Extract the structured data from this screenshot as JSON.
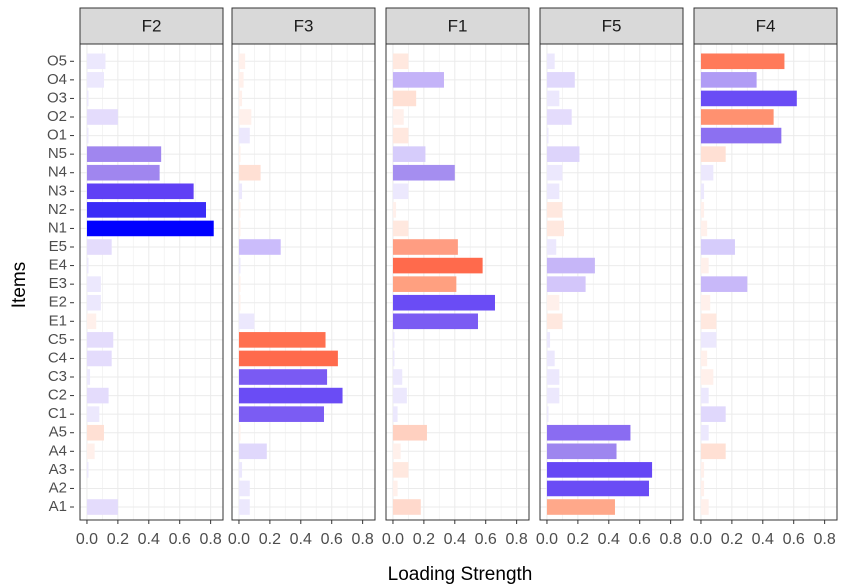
{
  "chart_data": {
    "type": "bar",
    "orientation": "horizontal",
    "x_label": "Loading Strength",
    "y_label": "Items",
    "categories": [
      "A1",
      "A2",
      "A3",
      "A4",
      "A5",
      "C1",
      "C2",
      "C3",
      "C4",
      "C5",
      "E1",
      "E2",
      "E3",
      "E4",
      "E5",
      "N1",
      "N2",
      "N3",
      "N4",
      "N5",
      "O1",
      "O2",
      "O3",
      "O4",
      "O5"
    ],
    "xlim": [
      -0.045,
      0.88
    ],
    "xticks": [
      {
        "value": 0,
        "label": "0.0"
      },
      0.2,
      0.4,
      0.6,
      0.8
    ],
    "grid": true,
    "panels": [
      {
        "name": "F2",
        "values": [
          0.2,
          0.0,
          0.01,
          0.05,
          0.11,
          0.08,
          0.14,
          0.02,
          0.16,
          0.17,
          0.06,
          0.09,
          0.09,
          0.01,
          0.16,
          0.82,
          0.77,
          0.69,
          0.47,
          0.48,
          0.01,
          0.2,
          0.01,
          0.11,
          0.12
        ],
        "colors": [
          "#e4dcfc",
          "#ece8fd",
          "#ece8fd",
          "#fff0eb",
          "#ffe0d4",
          "#ece8fd",
          "#e4dcfc",
          "#ece8fd",
          "#e4dcfc",
          "#e4dcfc",
          "#fff0eb",
          "#ece8fd",
          "#ece8fd",
          "#ece8fd",
          "#e4dcfc",
          "#0000ff",
          "#3a2cf7",
          "#6040f5",
          "#a086ef",
          "#a086ef",
          "#ece8fd",
          "#e4dcfc",
          "#ece8fd",
          "#ece8fd",
          "#ece8fd"
        ]
      },
      {
        "name": "F3",
        "values": [
          0.07,
          0.07,
          0.02,
          0.18,
          0.01,
          0.55,
          0.67,
          0.57,
          0.64,
          0.56,
          0.1,
          0.01,
          0.01,
          0.01,
          0.27,
          0.01,
          0.01,
          0.02,
          0.14,
          0.01,
          0.07,
          0.08,
          0.02,
          0.03,
          0.04
        ],
        "colors": [
          "#ece8fd",
          "#ece8fd",
          "#ece8fd",
          "#e0d8fc",
          "#fff0eb",
          "#7b5cf3",
          "#6a4cf5",
          "#7a5af3",
          "#ff6a4c",
          "#ff7050",
          "#ece8fd",
          "#fff0eb",
          "#fff0eb",
          "#ece8fd",
          "#cbbcfb",
          "#fff0eb",
          "#fff0eb",
          "#ece8fd",
          "#ffe0d4",
          "#fff0eb",
          "#ece8fd",
          "#fff0eb",
          "#fff0eb",
          "#fff0eb",
          "#fff0eb"
        ]
      },
      {
        "name": "F1",
        "values": [
          0.18,
          0.03,
          0.1,
          0.05,
          0.22,
          0.03,
          0.09,
          0.06,
          0.01,
          0.01,
          0.55,
          0.66,
          0.41,
          0.58,
          0.42,
          0.1,
          0.02,
          0.1,
          0.4,
          0.21,
          0.1,
          0.07,
          0.15,
          0.33,
          0.1
        ],
        "colors": [
          "#ffd9cc",
          "#fff0eb",
          "#ffe8df",
          "#fff0eb",
          "#ffd0c0",
          "#ece8fd",
          "#ece8fd",
          "#ece8fd",
          "#ece8fd",
          "#ece8fd",
          "#7b5cf3",
          "#6a4cf5",
          "#ffa080",
          "#ff6a4c",
          "#ff9d82",
          "#ffe8df",
          "#fff0eb",
          "#ece8fd",
          "#a58ef0",
          "#d6ccfb",
          "#ffe8df",
          "#fff0eb",
          "#ffe0d4",
          "#c4b3f8",
          "#ffe8df"
        ]
      },
      {
        "name": "F5",
        "values": [
          0.44,
          0.66,
          0.68,
          0.45,
          0.54,
          0.01,
          0.08,
          0.08,
          0.05,
          0.02,
          0.1,
          0.08,
          0.25,
          0.31,
          0.06,
          0.11,
          0.1,
          0.08,
          0.1,
          0.21,
          0.01,
          0.16,
          0.08,
          0.18,
          0.05
        ],
        "colors": [
          "#ffa88a",
          "#6a4cf5",
          "#6647f5",
          "#9e86ef",
          "#8a6cf2",
          "#ece8fd",
          "#ece8fd",
          "#ece8fd",
          "#ece8fd",
          "#ece8fd",
          "#ffe8df",
          "#fff0eb",
          "#d3c6fa",
          "#c6b6f8",
          "#ece8fd",
          "#ffe8df",
          "#ffe8df",
          "#ece8fd",
          "#ece8fd",
          "#ddd4fb",
          "#ece8fd",
          "#e4dcfc",
          "#ece8fd",
          "#e0d8fc",
          "#ece8fd"
        ]
      },
      {
        "name": "F4",
        "values": [
          0.05,
          0.02,
          0.02,
          0.16,
          0.05,
          0.16,
          0.05,
          0.08,
          0.04,
          0.1,
          0.1,
          0.06,
          0.3,
          0.05,
          0.22,
          0.04,
          0.02,
          0.02,
          0.08,
          0.16,
          0.52,
          0.47,
          0.62,
          0.36,
          0.54
        ],
        "colors": [
          "#fff0eb",
          "#fff0eb",
          "#fff0eb",
          "#ffe0d4",
          "#ece8fd",
          "#e0d8fc",
          "#ece8fd",
          "#fff0eb",
          "#fff0eb",
          "#ece8fd",
          "#ffe8df",
          "#fff0eb",
          "#c8b8f9",
          "#fff0eb",
          "#d6ccfb",
          "#fff0eb",
          "#fff0eb",
          "#ece8fd",
          "#ece8fd",
          "#ffe0d4",
          "#8c70f1",
          "#ff9170",
          "#6a4cf5",
          "#b09cf5",
          "#ff7a5a"
        ]
      }
    ]
  }
}
